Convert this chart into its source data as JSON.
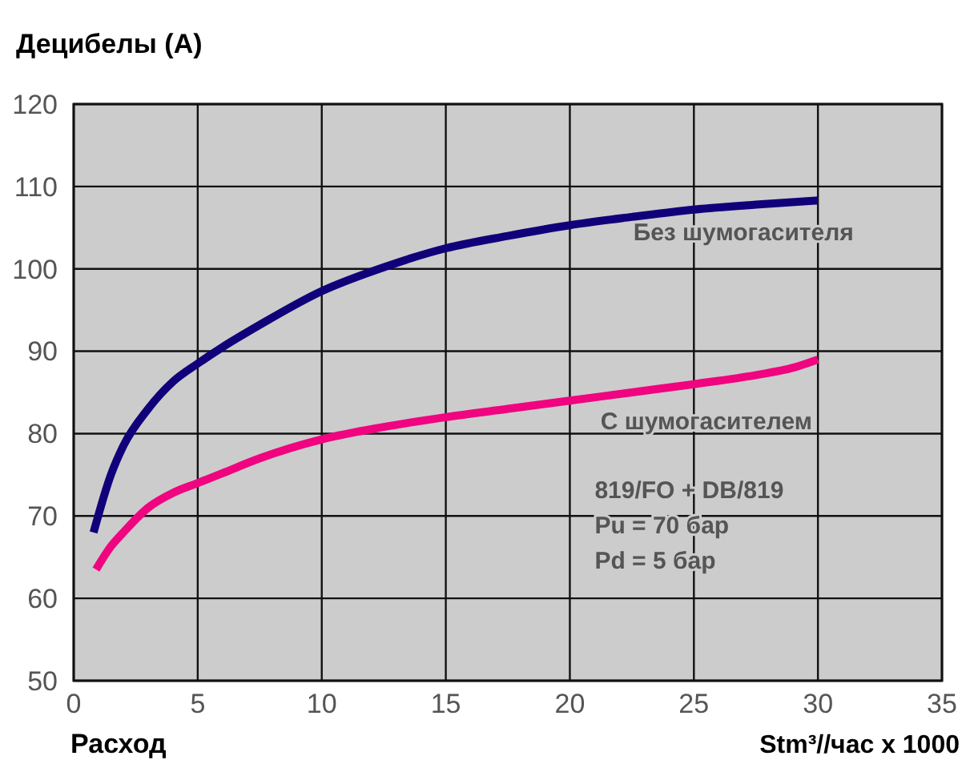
{
  "chart_data": {
    "type": "line",
    "ylabel": "Децибелы (A)",
    "xlabel": "Расход",
    "xlim": [
      0,
      35
    ],
    "xticks": [
      0,
      5,
      10,
      15,
      20,
      25,
      30,
      35
    ],
    "ylim": [
      50,
      120
    ],
    "yticks": [
      50,
      60,
      70,
      80,
      90,
      100,
      110,
      120
    ],
    "grid": true,
    "marker": "none",
    "line_style": "solid",
    "series": [
      {
        "name": "Без шумогасителя",
        "color": "#10007a",
        "x": [
          0.8,
          1.5,
          2,
          3,
          4,
          5,
          6,
          7.5,
          10,
          12.5,
          15,
          17.5,
          20,
          22.5,
          25,
          27.5,
          30
        ],
        "values": [
          68,
          75,
          78.5,
          83,
          86.3,
          88.5,
          90.5,
          93.2,
          97.3,
          100.2,
          102.5,
          104,
          105.3,
          106.3,
          107.2,
          107.8,
          108.3
        ]
      },
      {
        "name": "С шумогасителем",
        "color": "#f0047f",
        "x": [
          0.9,
          1.5,
          2,
          3,
          4,
          5,
          6,
          7.5,
          10,
          12.5,
          15,
          17.5,
          20,
          22.5,
          25,
          27.5,
          29,
          30
        ],
        "values": [
          63.5,
          66.3,
          68,
          71,
          72.8,
          74,
          75.2,
          77,
          79.3,
          80.8,
          82,
          83,
          84,
          85,
          86,
          87.1,
          88,
          89
        ]
      }
    ],
    "annotations": [
      "819/FO + DB/819",
      "Pu = 70 бар",
      "Pd = 5 бар",
      "Stm³//час x 1000"
    ]
  }
}
